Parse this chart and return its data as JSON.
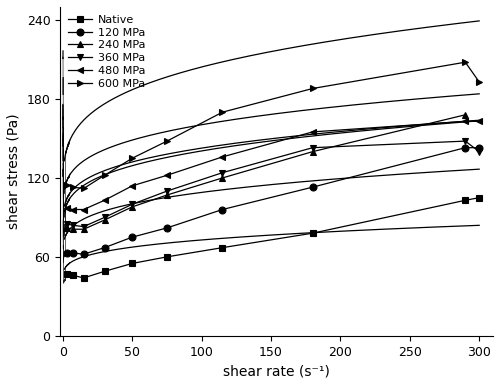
{
  "title": "",
  "xlabel": "shear rate (s⁻¹)",
  "ylabel": "shear stress (Pa)",
  "xlim": [
    -2,
    310
  ],
  "ylim": [
    0,
    250
  ],
  "xticks": [
    0,
    50,
    100,
    150,
    200,
    250,
    300
  ],
  "yticks": [
    0,
    60,
    120,
    180,
    240
  ],
  "figsize": [
    5.0,
    3.85
  ],
  "dpi": 100,
  "line_color": "#000000",
  "background_color": "#ffffff",
  "series": [
    {
      "label": "Native",
      "marker": "s",
      "marker_x": [
        3,
        7,
        15,
        30,
        50,
        75,
        115,
        180,
        290,
        300
      ],
      "marker_y": [
        47,
        46,
        44,
        49,
        55,
        60,
        67,
        78,
        103,
        105
      ],
      "K": 8.5,
      "n": 0.28,
      "tau0": 42
    },
    {
      "label": "120 MPa",
      "marker": "o",
      "marker_x": [
        3,
        7,
        15,
        30,
        50,
        75,
        115,
        180,
        290,
        300
      ],
      "marker_y": [
        63,
        63,
        62,
        67,
        75,
        82,
        96,
        113,
        143,
        143
      ],
      "K": 13.5,
      "n": 0.28,
      "tau0": 60
    },
    {
      "label": "240 MPa",
      "marker": "^",
      "marker_x": [
        3,
        7,
        15,
        30,
        50,
        75,
        115,
        180,
        290
      ],
      "marker_y": [
        82,
        81,
        81,
        88,
        98,
        107,
        120,
        140,
        168
      ],
      "K": 17.5,
      "n": 0.28,
      "tau0": 77
    },
    {
      "label": "360 MPa",
      "marker": "v",
      "marker_x": [
        3,
        7,
        15,
        30,
        50,
        75,
        115,
        180,
        290,
        300
      ],
      "marker_y": [
        85,
        84,
        83,
        90,
        100,
        110,
        124,
        143,
        148,
        140
      ],
      "K": 18.5,
      "n": 0.265,
      "tau0": 80
    },
    {
      "label": "480 MPa",
      "marker": "<",
      "marker_x": [
        3,
        7,
        15,
        30,
        50,
        75,
        115,
        180,
        290,
        300
      ],
      "marker_y": [
        97,
        96,
        96,
        103,
        114,
        122,
        136,
        155,
        163,
        163
      ],
      "K": 20.5,
      "n": 0.265,
      "tau0": 91
    },
    {
      "label": "600 MPa",
      "marker": ">",
      "marker_x": [
        3,
        7,
        15,
        30,
        50,
        75,
        115,
        180,
        290,
        300
      ],
      "marker_y": [
        115,
        113,
        112,
        122,
        135,
        148,
        170,
        188,
        208,
        193
      ],
      "K": 28.0,
      "n": 0.275,
      "tau0": 105
    }
  ]
}
